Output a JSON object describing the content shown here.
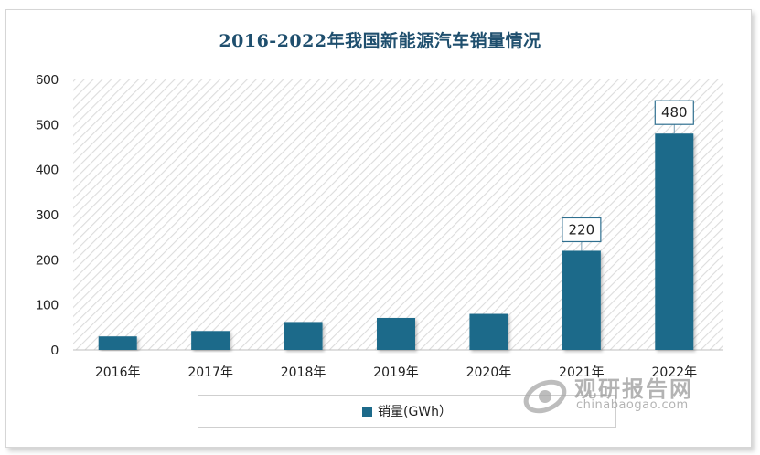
{
  "chart_data": {
    "type": "bar",
    "title": "2016-2022年我国新能源汽车销量情况",
    "categories": [
      "2016年",
      "2017年",
      "2018年",
      "2019年",
      "2020年",
      "2021年",
      "2022年"
    ],
    "series": [
      {
        "name": "销量(GWh)",
        "values": [
          30,
          42,
          62,
          71,
          80,
          220,
          480
        ],
        "color": "#1d6a8a"
      }
    ],
    "data_labels": [
      {
        "category": "2021年",
        "value": 220,
        "text": "220"
      },
      {
        "category": "2022年",
        "value": 480,
        "text": "480"
      }
    ],
    "ylim": [
      0,
      600
    ],
    "yticks": [
      0,
      100,
      200,
      300,
      400,
      500,
      600
    ],
    "xlabel": "",
    "ylabel": "",
    "grid": false,
    "background_pattern": "diagonal-hatch",
    "legend_position": "bottom"
  },
  "legend": {
    "label": "销量(GWh）"
  },
  "watermark": {
    "brand_cn": "观研报告网",
    "brand_en": "chinabaogao.com"
  }
}
